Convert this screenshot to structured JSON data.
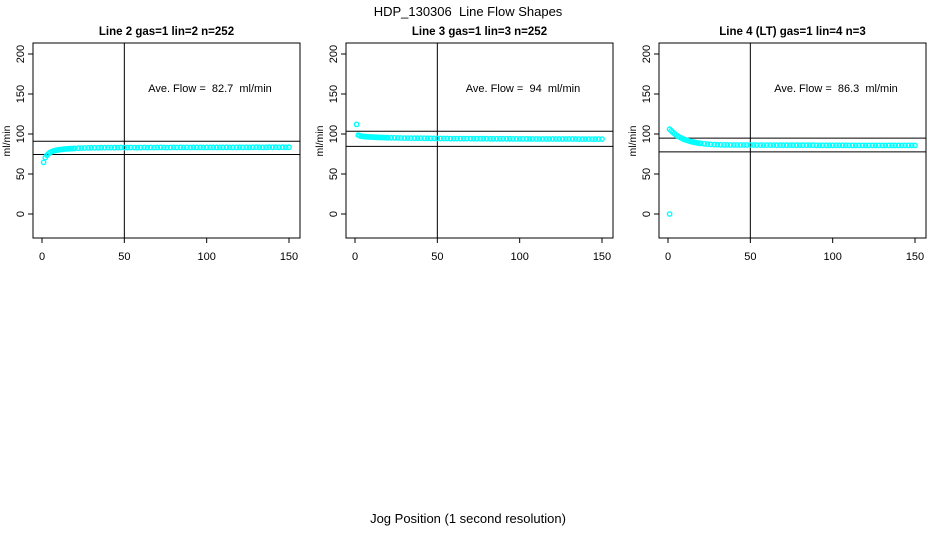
{
  "page": {
    "title": "HDP_130306  Line Flow Shapes",
    "xlabel": "Jog Position (1 second resolution)"
  },
  "colors": {
    "points": "#00ffff",
    "axis": "#000000",
    "ref_line": "#000000",
    "background": "#ffffff"
  },
  "chart_data": [
    {
      "type": "scatter",
      "title": "Line 2 gas=1 lin=2 n=252",
      "annotation": "Ave. Flow =  82.7  ml/min",
      "ave_flow": 82.7,
      "ylabel": "ml/min",
      "x_ticks": [
        0,
        50,
        100,
        150
      ],
      "y_ticks": [
        0,
        50,
        100,
        150,
        200
      ],
      "xlim": [
        -6,
        156
      ],
      "ylim": [
        -30,
        214
      ],
      "grid": false,
      "ref_h": [
        91.0,
        74.4
      ],
      "ref_v": 50,
      "points": [
        [
          1,
          64.5
        ],
        [
          2,
          70.5
        ],
        [
          3,
          73.5
        ],
        [
          4,
          75.5
        ],
        [
          5,
          77
        ],
        [
          6,
          78
        ],
        [
          7,
          78.8
        ],
        [
          8,
          79.4
        ],
        [
          9,
          79.8
        ],
        [
          10,
          80.2
        ],
        [
          11,
          80.5
        ],
        [
          12,
          80.8
        ],
        [
          13,
          81
        ],
        [
          14,
          81.2
        ],
        [
          15,
          81.4
        ],
        [
          16,
          81.5
        ],
        [
          17,
          81.7
        ],
        [
          18,
          81.8
        ],
        [
          19,
          81.9
        ],
        [
          20,
          82
        ],
        [
          22,
          82.2
        ],
        [
          24,
          82.4
        ],
        [
          26,
          82.5
        ],
        [
          28,
          82.6
        ],
        [
          30,
          82.7
        ],
        [
          32,
          82.8
        ],
        [
          34,
          82.8
        ],
        [
          36,
          82.9
        ],
        [
          38,
          82.9
        ],
        [
          40,
          83
        ],
        [
          42,
          83
        ],
        [
          44,
          82.9
        ],
        [
          46,
          83
        ],
        [
          48,
          83.1
        ],
        [
          50,
          83
        ],
        [
          52,
          83
        ],
        [
          54,
          83.1
        ],
        [
          56,
          83
        ],
        [
          58,
          82.9
        ],
        [
          60,
          83
        ],
        [
          62,
          83.1
        ],
        [
          64,
          83
        ],
        [
          66,
          83.1
        ],
        [
          68,
          83
        ],
        [
          70,
          83.1
        ],
        [
          72,
          83.2
        ],
        [
          74,
          83.1
        ],
        [
          76,
          83
        ],
        [
          78,
          83.1
        ],
        [
          80,
          83.2
        ],
        [
          82,
          83.1
        ],
        [
          84,
          83.2
        ],
        [
          86,
          83.1
        ],
        [
          88,
          83.2
        ],
        [
          90,
          83.1
        ],
        [
          92,
          83.2
        ],
        [
          94,
          83.3
        ],
        [
          96,
          83.2
        ],
        [
          98,
          83.1
        ],
        [
          100,
          83.2
        ],
        [
          102,
          83.3
        ],
        [
          104,
          83.2
        ],
        [
          106,
          83.3
        ],
        [
          108,
          83.2
        ],
        [
          110,
          83.3
        ],
        [
          112,
          83.4
        ],
        [
          114,
          83.3
        ],
        [
          116,
          83.2
        ],
        [
          118,
          83.3
        ],
        [
          120,
          83.4
        ],
        [
          122,
          83.3
        ],
        [
          124,
          83.4
        ],
        [
          126,
          83.3
        ],
        [
          128,
          83.4
        ],
        [
          130,
          83.5
        ],
        [
          132,
          83.4
        ],
        [
          134,
          83.3
        ],
        [
          136,
          83.4
        ],
        [
          138,
          83.5
        ],
        [
          140,
          83.4
        ],
        [
          142,
          83.5
        ],
        [
          144,
          83.4
        ],
        [
          146,
          83.5
        ],
        [
          148,
          83.4
        ],
        [
          150,
          83.5
        ]
      ]
    },
    {
      "type": "scatter",
      "title": "Line 3 gas=1 lin=3 n=252",
      "annotation": "Ave. Flow =  94  ml/min",
      "ave_flow": 94,
      "ylabel": "ml/min",
      "x_ticks": [
        0,
        50,
        100,
        150
      ],
      "y_ticks": [
        0,
        50,
        100,
        150,
        200
      ],
      "xlim": [
        -6,
        156
      ],
      "ylim": [
        -30,
        214
      ],
      "grid": false,
      "ref_h": [
        103.4,
        84.6
      ],
      "ref_v": 50,
      "points": [
        [
          1,
          112
        ],
        [
          2,
          98.6
        ],
        [
          3,
          97.8
        ],
        [
          4,
          97.3
        ],
        [
          5,
          97
        ],
        [
          6,
          96.8
        ],
        [
          7,
          96.6
        ],
        [
          8,
          96.4
        ],
        [
          9,
          96.3
        ],
        [
          10,
          96.2
        ],
        [
          11,
          96.1
        ],
        [
          12,
          96
        ],
        [
          13,
          95.9
        ],
        [
          14,
          95.8
        ],
        [
          15,
          95.7
        ],
        [
          16,
          95.6
        ],
        [
          17,
          95.6
        ],
        [
          18,
          95.5
        ],
        [
          19,
          95.4
        ],
        [
          20,
          95.4
        ],
        [
          22,
          95.3
        ],
        [
          24,
          95.2
        ],
        [
          26,
          95.1
        ],
        [
          28,
          95
        ],
        [
          30,
          94.9
        ],
        [
          32,
          94.9
        ],
        [
          34,
          94.8
        ],
        [
          36,
          94.8
        ],
        [
          38,
          94.7
        ],
        [
          40,
          94.7
        ],
        [
          42,
          94.6
        ],
        [
          44,
          94.6
        ],
        [
          46,
          94.5
        ],
        [
          48,
          94.5
        ],
        [
          50,
          94.5
        ],
        [
          52,
          94.4
        ],
        [
          54,
          94.4
        ],
        [
          56,
          94.4
        ],
        [
          58,
          94.3
        ],
        [
          60,
          94.3
        ],
        [
          62,
          94.3
        ],
        [
          64,
          94.2
        ],
        [
          66,
          94.2
        ],
        [
          68,
          94.2
        ],
        [
          70,
          94.2
        ],
        [
          72,
          94.1
        ],
        [
          74,
          94.1
        ],
        [
          76,
          94.1
        ],
        [
          78,
          94.1
        ],
        [
          80,
          94.1
        ],
        [
          82,
          94
        ],
        [
          84,
          94
        ],
        [
          86,
          94
        ],
        [
          88,
          94
        ],
        [
          90,
          94
        ],
        [
          92,
          94
        ],
        [
          94,
          94
        ],
        [
          96,
          93.9
        ],
        [
          98,
          93.9
        ],
        [
          100,
          93.9
        ],
        [
          102,
          93.9
        ],
        [
          104,
          93.9
        ],
        [
          106,
          93.9
        ],
        [
          108,
          93.8
        ],
        [
          110,
          93.8
        ],
        [
          112,
          93.8
        ],
        [
          114,
          93.8
        ],
        [
          116,
          93.8
        ],
        [
          118,
          93.8
        ],
        [
          120,
          93.8
        ],
        [
          122,
          93.7
        ],
        [
          124,
          93.7
        ],
        [
          126,
          93.7
        ],
        [
          128,
          93.7
        ],
        [
          130,
          93.7
        ],
        [
          132,
          93.7
        ],
        [
          134,
          93.7
        ],
        [
          136,
          93.6
        ],
        [
          138,
          93.6
        ],
        [
          140,
          93.6
        ],
        [
          142,
          93.6
        ],
        [
          144,
          93.6
        ],
        [
          146,
          93.6
        ],
        [
          148,
          93.6
        ],
        [
          150,
          93.6
        ]
      ]
    },
    {
      "type": "scatter",
      "title": "Line 4 (LT) gas=1 lin=4 n=3",
      "annotation": "Ave. Flow =  86.3  ml/min",
      "ave_flow": 86.3,
      "ylabel": "ml/min",
      "x_ticks": [
        0,
        50,
        100,
        150
      ],
      "y_ticks": [
        0,
        50,
        100,
        150,
        200
      ],
      "xlim": [
        -6,
        156
      ],
      "ylim": [
        -30,
        214
      ],
      "grid": false,
      "ref_h": [
        94.9,
        77.7
      ],
      "ref_v": 50,
      "points": [
        [
          1,
          0
        ],
        [
          1,
          106
        ],
        [
          2,
          104
        ],
        [
          3,
          102
        ],
        [
          4,
          100.2
        ],
        [
          5,
          98.7
        ],
        [
          6,
          97.3
        ],
        [
          7,
          96.1
        ],
        [
          8,
          95
        ],
        [
          9,
          94
        ],
        [
          10,
          93.2
        ],
        [
          11,
          92.4
        ],
        [
          12,
          91.7
        ],
        [
          13,
          91.1
        ],
        [
          14,
          90.5
        ],
        [
          15,
          90
        ],
        [
          16,
          89.6
        ],
        [
          17,
          89.2
        ],
        [
          18,
          88.8
        ],
        [
          19,
          88.5
        ],
        [
          20,
          88.2
        ],
        [
          22,
          87.7
        ],
        [
          24,
          87.3
        ],
        [
          26,
          87
        ],
        [
          28,
          86.8
        ],
        [
          30,
          86.6
        ],
        [
          32,
          86.5
        ],
        [
          34,
          86.4
        ],
        [
          36,
          86.4
        ],
        [
          38,
          86.3
        ],
        [
          40,
          86.3
        ],
        [
          42,
          86.3
        ],
        [
          44,
          86.2
        ],
        [
          46,
          86.2
        ],
        [
          48,
          86.2
        ],
        [
          50,
          86.2
        ],
        [
          52,
          86.2
        ],
        [
          54,
          86.1
        ],
        [
          56,
          86.1
        ],
        [
          58,
          86.1
        ],
        [
          60,
          86.1
        ],
        [
          62,
          86.1
        ],
        [
          64,
          86.1
        ],
        [
          66,
          86
        ],
        [
          68,
          86
        ],
        [
          70,
          86
        ],
        [
          72,
          86
        ],
        [
          74,
          86
        ],
        [
          76,
          86
        ],
        [
          78,
          86
        ],
        [
          80,
          86
        ],
        [
          82,
          86
        ],
        [
          84,
          86
        ],
        [
          86,
          86
        ],
        [
          88,
          86
        ],
        [
          90,
          85.9
        ],
        [
          92,
          85.9
        ],
        [
          94,
          85.9
        ],
        [
          96,
          85.9
        ],
        [
          98,
          85.9
        ],
        [
          100,
          85.9
        ],
        [
          102,
          85.9
        ],
        [
          104,
          85.9
        ],
        [
          106,
          85.9
        ],
        [
          108,
          85.9
        ],
        [
          110,
          85.8
        ],
        [
          112,
          85.8
        ],
        [
          114,
          85.8
        ],
        [
          116,
          85.8
        ],
        [
          118,
          85.8
        ],
        [
          120,
          85.8
        ],
        [
          122,
          85.8
        ],
        [
          124,
          85.8
        ],
        [
          126,
          85.8
        ],
        [
          128,
          85.8
        ],
        [
          130,
          85.8
        ],
        [
          132,
          85.8
        ],
        [
          134,
          85.7
        ],
        [
          136,
          85.7
        ],
        [
          138,
          85.7
        ],
        [
          140,
          85.7
        ],
        [
          142,
          85.7
        ],
        [
          144,
          85.7
        ],
        [
          146,
          85.7
        ],
        [
          148,
          85.7
        ],
        [
          150,
          85.7
        ]
      ]
    }
  ]
}
